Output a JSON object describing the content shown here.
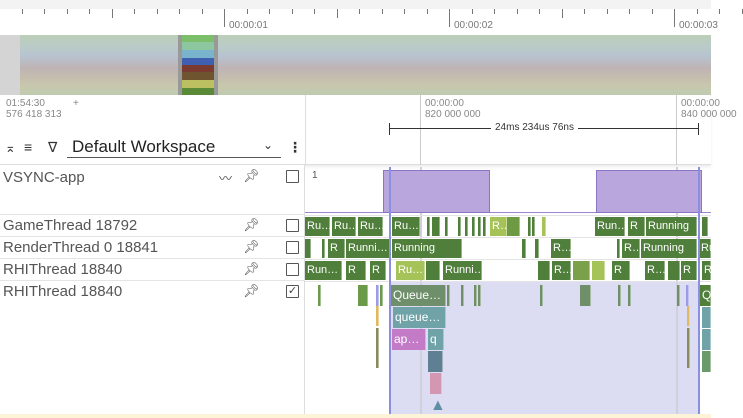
{
  "timeline": {
    "ticks": [
      "00:00:01",
      "00:00:02",
      "00:00:03"
    ]
  },
  "header": {
    "time_origin": "01:54:30",
    "time_origin_ns": "576 418 313",
    "plus": "+",
    "grid_labels": [
      {
        "time": "00:00:00",
        "ns": "820 000 000"
      },
      {
        "time": "00:00:00",
        "ns": "840 000 000"
      }
    ],
    "measurement": "24ms 234us 76ns",
    "workspace": "Default Workspace",
    "icons": [
      "collapse-icon",
      "sort-icon",
      "filter-icon",
      "chevron-down-icon",
      "more-vert-icon"
    ]
  },
  "tracks": [
    {
      "name": "VSYNC-app",
      "value_label": "1",
      "checked": false,
      "has_counter_icon": true
    },
    {
      "name": "GameThread 18792",
      "checked": false
    },
    {
      "name": "RenderThread 0 18841",
      "checked": false
    },
    {
      "name": "RHIThread 18840",
      "checked": false
    },
    {
      "name": "RHIThread 18840",
      "checked": true
    }
  ],
  "slices": {
    "game": [
      "Ru…",
      "Ru…",
      "Ru…",
      "Ru…",
      "R…",
      "Run…",
      "R",
      "Running"
    ],
    "render": [
      "R",
      "Runni…",
      "Running",
      "R…",
      "R…",
      "Running",
      "Ru"
    ],
    "rhi": [
      "Run…",
      "R",
      "R",
      "Ru…",
      "Runni…",
      "R…",
      "R",
      "R…",
      "R",
      "R"
    ],
    "rhi_expanded": [
      "Queue…",
      "Q",
      "queue…",
      "ap…",
      "q"
    ]
  },
  "colors": {
    "running": "#4f7f3a",
    "runnable": "#a6c35a",
    "selection": "#dcdcf3",
    "vsync": "#b9a6dc",
    "selection_line": "#8b8fe0"
  }
}
